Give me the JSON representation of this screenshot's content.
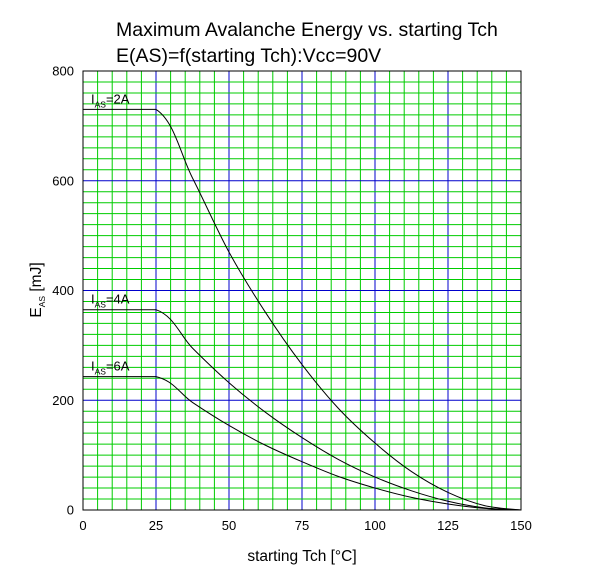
{
  "chart_data": {
    "type": "line",
    "title": "Maximum Avalanche Energy vs. starting Tch",
    "subtitle": "E(AS)=f(starting Tch):Vcc=90V",
    "xlabel": "starting Tch [°C]",
    "ylabel": {
      "main": "E",
      "sub": "AS",
      "unit": " [mJ]"
    },
    "xlim": [
      0,
      150
    ],
    "ylim": [
      0,
      800
    ],
    "x_ticks": [
      "0",
      "25",
      "50",
      "75",
      "100",
      "125",
      "150"
    ],
    "y_ticks": [
      "0",
      "200",
      "400",
      "600",
      "800"
    ],
    "grid": true,
    "colors": {
      "minor_grid": "#00cc00",
      "major_grid": "#0000cc",
      "line": "#000000",
      "frame": "#000000"
    },
    "series": [
      {
        "label": {
          "main": "I",
          "sub": "AS",
          "rest": "=2A"
        },
        "x": [
          0,
          25,
          37.5,
          50,
          62.5,
          75,
          87.5,
          100,
          112.5,
          125,
          137.5,
          150
        ],
        "y": [
          730,
          730,
          605,
          470,
          360,
          265,
          185,
          122,
          70,
          32,
          8,
          0
        ]
      },
      {
        "label": {
          "main": "I",
          "sub": "AS",
          "rest": "=4A"
        },
        "x": [
          0,
          25,
          37.5,
          50,
          62.5,
          75,
          87.5,
          100,
          112.5,
          125,
          137.5,
          150
        ],
        "y": [
          365,
          365,
          295,
          232,
          178,
          132,
          92,
          60,
          35,
          16,
          4,
          0
        ]
      },
      {
        "label": {
          "main": "I",
          "sub": "AS",
          "rest": "=6A"
        },
        "x": [
          0,
          25,
          37.5,
          50,
          62.5,
          75,
          87.5,
          100,
          112.5,
          125,
          137.5,
          150
        ],
        "y": [
          243,
          243,
          196,
          154,
          118,
          88,
          61,
          40,
          23,
          11,
          3,
          0
        ]
      }
    ]
  }
}
